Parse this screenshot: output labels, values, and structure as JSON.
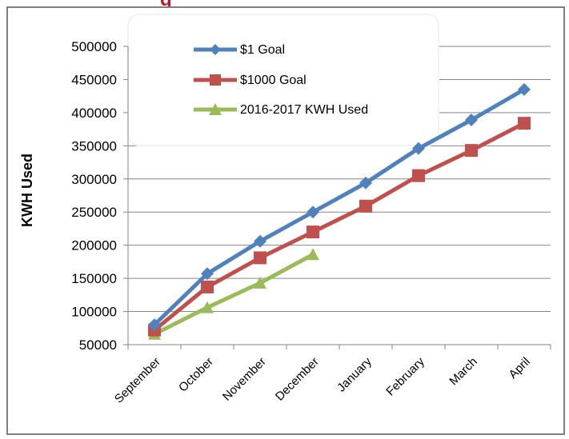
{
  "chart_data": {
    "type": "line",
    "title": "",
    "xlabel": "",
    "ylabel": "KWH Used",
    "ylim": [
      50000,
      500000
    ],
    "y_ticks": [
      50000,
      100000,
      150000,
      200000,
      250000,
      300000,
      350000,
      400000,
      450000,
      500000
    ],
    "categories": [
      "September",
      "October",
      "November",
      "December",
      "January",
      "February",
      "March",
      "April"
    ],
    "grid": true,
    "legend_position": "top-center",
    "series": [
      {
        "name": "$1 Goal",
        "color": "#4f81bd",
        "marker": "diamond",
        "values": [
          80000,
          157000,
          206000,
          250000,
          294000,
          346000,
          389000,
          435000
        ]
      },
      {
        "name": "$1000 Goal",
        "color": "#c0504d",
        "marker": "square",
        "values": [
          72000,
          137000,
          181000,
          220000,
          259000,
          305000,
          343000,
          384000
        ]
      },
      {
        "name": "2016-2017 KWH Used",
        "color": "#9bbb59",
        "marker": "triangle",
        "values": [
          66000,
          106000,
          143000,
          186000,
          null,
          null,
          null,
          null
        ]
      }
    ]
  }
}
